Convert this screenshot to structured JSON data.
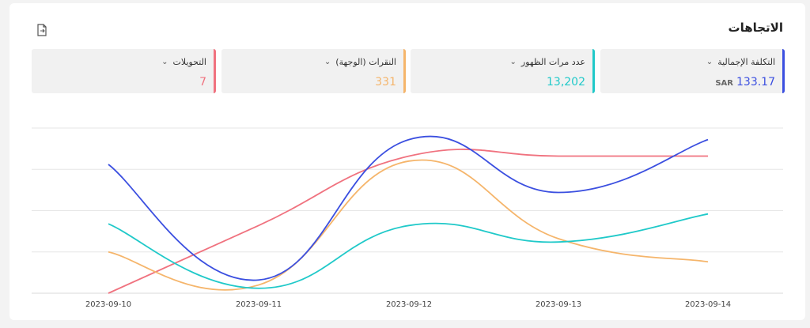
{
  "header": {
    "title": "الاتجاهات",
    "export_icon": "document-export-icon"
  },
  "metrics": [
    {
      "label": "التكلفة الإجمالية",
      "value": "133.17",
      "unit": "SAR",
      "color": "#3b4fe0"
    },
    {
      "label": "عدد مرات الظهور",
      "value": "13,202",
      "unit": "",
      "color": "#20c9c9"
    },
    {
      "label": "النقرات (الوجهة)",
      "value": "331",
      "unit": "",
      "color": "#f5b56b"
    },
    {
      "label": "التحويلات",
      "value": "7",
      "unit": "",
      "color": "#f0727f"
    }
  ],
  "chart_data": {
    "type": "line",
    "x": [
      "2023-09-10",
      "2023-09-11",
      "2023-09-12",
      "2023-09-13",
      "2023-09-14"
    ],
    "grid": true,
    "series": [
      {
        "name": "التكلفة الإجمالية",
        "color": "#3b4fe0",
        "values": [
          0.78,
          0.08,
          0.93,
          0.61,
          0.93
        ]
      },
      {
        "name": "عدد مرات الظهور",
        "color": "#20c9c9",
        "values": [
          0.42,
          0.03,
          0.41,
          0.31,
          0.48
        ]
      },
      {
        "name": "النقرات (الوجهة)",
        "color": "#f5b56b",
        "values": [
          0.25,
          0.05,
          0.8,
          0.33,
          0.19
        ]
      },
      {
        "name": "التحويلات",
        "color": "#f0727f",
        "values": [
          0.0,
          0.41,
          0.83,
          0.83,
          0.83
        ]
      }
    ]
  }
}
